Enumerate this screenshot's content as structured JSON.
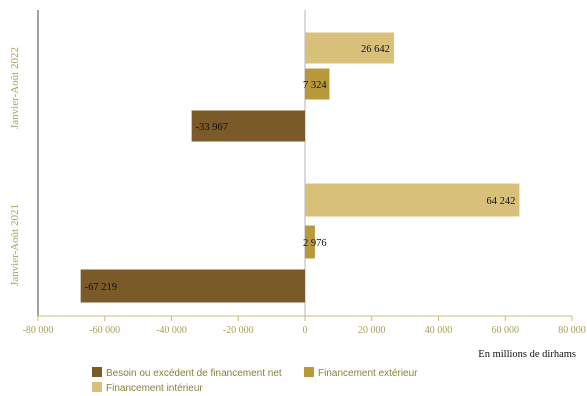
{
  "chart_data": {
    "type": "bar",
    "orientation": "horizontal",
    "unit_label": "En millions de dirhams",
    "categories": [
      "Janvier-Août 2022",
      "Janvier-Août 2021"
    ],
    "series": [
      {
        "name": "Financement intérieur",
        "color": "#d9c07a",
        "values": [
          26642,
          64242
        ],
        "labels": [
          "26 642",
          "64 242"
        ]
      },
      {
        "name": "Financement extérieur",
        "color": "#b89a3c",
        "values": [
          7324,
          2976
        ],
        "labels": [
          "7 324",
          "2 976"
        ]
      },
      {
        "name": "Besoin ou excédent de financement net",
        "color": "#7a5a28",
        "values": [
          -33967,
          -67219
        ],
        "labels": [
          "-33 967",
          "-67 219"
        ]
      }
    ],
    "xlim": [
      -80000,
      80000
    ],
    "xticks": [
      -80000,
      -60000,
      -40000,
      -20000,
      0,
      20000,
      40000,
      60000,
      80000
    ],
    "xtick_labels": [
      "-80 000",
      "-60 000",
      "-40 000",
      "-20 000",
      "0",
      "20 000",
      "40 000",
      "60 000",
      "80 000"
    ],
    "grid": false,
    "legend_position": "bottom-left",
    "legend_order": [
      "Besoin ou excédent de financement net",
      "Financement extérieur",
      "Financement intérieur"
    ]
  }
}
